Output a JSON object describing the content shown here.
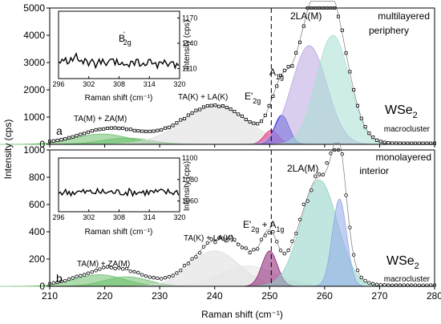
{
  "chart_data": [
    {
      "panel_label": "a",
      "type": "line",
      "xlabel": "Raman shift (cm⁻¹)",
      "ylabel": "Intensity (cps)",
      "xlim": [
        210,
        280
      ],
      "ylim": [
        0,
        5000
      ],
      "xticks": [
        "210",
        "220",
        "230",
        "240",
        "250",
        "260",
        "270",
        "280"
      ],
      "yticks": [
        "0",
        "1000",
        "2000",
        "3000",
        "4000",
        "5000"
      ],
      "annotations": {
        "taza": "TA(M) + ZA(M)",
        "tala": "TA(K) + LA(K)",
        "e2g_base": "E'",
        "e2g_sub": "2g",
        "a1g_base": "A",
        "a1g_sub": "1g",
        "la2": "2LA(M)",
        "desc_line1": "multilayered",
        "desc_line2": "periphery",
        "sample_base": "WSe",
        "sample_sub": "2",
        "sample_note": "macrocluster"
      },
      "dashed_line_x": 250.3,
      "peaks": [
        {
          "name": "TA(M)+ZA(M) a",
          "center": 219.5,
          "height": 380,
          "width": 5,
          "color": "#6cbf6c"
        },
        {
          "name": "TA(M)+ZA(M) b",
          "center": 224,
          "height": 230,
          "width": 4.5,
          "color": "#6cbf6c"
        },
        {
          "name": "TA(K)+LA(K)",
          "center": 240,
          "height": 1380,
          "width": 6,
          "color": "#dddddd"
        },
        {
          "name": "E'2g",
          "center": 250.3,
          "height": 520,
          "width": 1.3,
          "color": "#e8257a"
        },
        {
          "name": "A1g",
          "center": 252.2,
          "height": 1070,
          "width": 1.3,
          "color": "#1d24d6"
        },
        {
          "name": "2LA(M) a",
          "center": 257.2,
          "height": 3620,
          "width": 3.2,
          "color": "#b9a6e0"
        },
        {
          "name": "2LA(M) b",
          "center": 261.5,
          "height": 4000,
          "width": 3.0,
          "color": "#a8dfd3"
        }
      ],
      "inset": {
        "xlabel": "Raman shift (cm⁻¹)",
        "ylabel": "Intensity (cps)",
        "xlim": [
          296,
          320
        ],
        "ylim": [
          1098,
          1178
        ],
        "xticks": [
          "296",
          "302",
          "308",
          "314",
          "320"
        ],
        "yticks": [
          "1110",
          "1140",
          "1170"
        ],
        "label_base": "B",
        "label_sup": "'",
        "label_sub": "2g",
        "mean": 1116,
        "noise": 5.5
      }
    },
    {
      "panel_label": "b",
      "type": "line",
      "xlabel": "Raman shift (cm⁻¹)",
      "ylabel": "Intensity (cps)",
      "xlim": [
        210,
        280
      ],
      "ylim": [
        0,
        1000
      ],
      "xticks": [
        "210",
        "220",
        "230",
        "240",
        "250",
        "260",
        "270",
        "280"
      ],
      "yticks": [
        "0",
        "200",
        "400",
        "600",
        "800",
        "1000"
      ],
      "annotations": {
        "taza": "TA(M) + ZA(M)",
        "tala": "TA(K) + LA(K)",
        "e2g_base": "E'",
        "e2g_sub": "2g",
        "a1g_base": " + A",
        "a1g_sub": "1g",
        "la2": "2LA(M)",
        "desc_line1": "monolayered",
        "desc_line2": "interior",
        "sample_base": "WSe",
        "sample_sub": "2",
        "sample_note": "macrocluster"
      },
      "dashed_line_x": 250.3,
      "peaks": [
        {
          "name": "TA(M)+ZA(M) a",
          "center": 219,
          "height": 85,
          "width": 4.5,
          "color": "#6cbf6c"
        },
        {
          "name": "TA(M)+ZA(M) b",
          "center": 224,
          "height": 70,
          "width": 4,
          "color": "#6cbf6c"
        },
        {
          "name": "TA(K)+LA(K) a",
          "center": 240,
          "height": 260,
          "width": 4.5,
          "color": "#dddddd"
        },
        {
          "name": "TA(K)+LA(K) b",
          "center": 246,
          "height": 150,
          "width": 5,
          "color": "#e6e6e6"
        },
        {
          "name": "E'2g + A1g",
          "center": 250,
          "height": 260,
          "width": 1.4,
          "color": "#8b1e73"
        },
        {
          "name": "2LA(M) a",
          "center": 259,
          "height": 780,
          "width": 3.3,
          "color": "#8ed1c4"
        },
        {
          "name": "2LA(M) b",
          "center": 262.7,
          "height": 640,
          "width": 1.3,
          "color": "#8fa8e8"
        }
      ],
      "inset": {
        "xlabel": "Raman shift (cm⁻¹)",
        "ylabel": "Intensity (cps)",
        "xlim": [
          296,
          320
        ],
        "ylim": [
          1050,
          1100
        ],
        "xticks": [
          "296",
          "302",
          "308",
          "314",
          "320"
        ],
        "yticks": [
          "1060",
          "1080",
          "1100"
        ],
        "mean": 1068,
        "noise": 3.5
      }
    }
  ]
}
